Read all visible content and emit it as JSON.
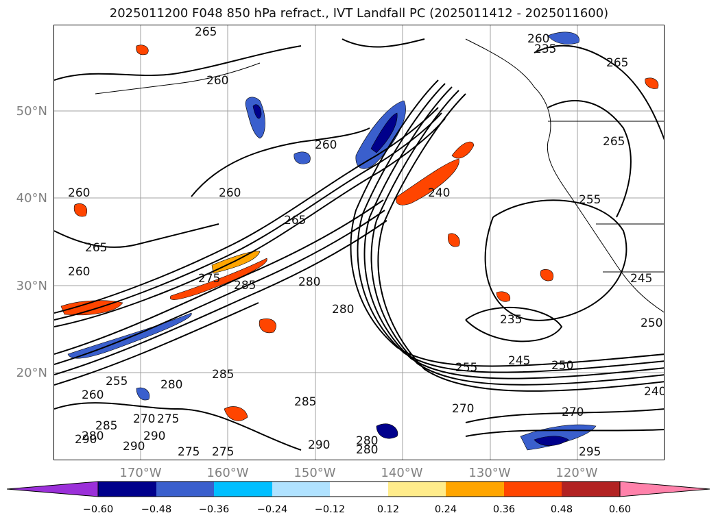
{
  "title": "2025011200 F048 850 hPa refract., IVT Landfall PC (2025011412 - 2025011600)",
  "lat_labels": [
    "50°N",
    "40°N",
    "30°N",
    "20°N"
  ],
  "lon_labels": [
    "170°W",
    "160°W",
    "150°W",
    "140°W",
    "130°W",
    "120°W"
  ],
  "colorbar": {
    "ticks": [
      "−0.60",
      "−0.48",
      "−0.36",
      "−0.24",
      "−0.12",
      "0.12",
      "0.24",
      "0.36",
      "0.48",
      "0.60"
    ],
    "colors": [
      "#9b30d9",
      "#00008b",
      "#3a5fcd",
      "#00bfff",
      "#b0e2ff",
      "#ffffff",
      "#ffec8b",
      "#ffa500",
      "#ff4500",
      "#b22222",
      "#ff82ab"
    ]
  },
  "contour_labels": [
    "265",
    "260",
    "260",
    "260",
    "260",
    "260",
    "265",
    "265",
    "260",
    "275",
    "285",
    "280",
    "280",
    "235",
    "245",
    "255",
    "250",
    "270",
    "270",
    "240",
    "250",
    "245",
    "255",
    "265",
    "280",
    "285",
    "290",
    "275",
    "275",
    "290",
    "290",
    "285",
    "295",
    "280",
    "280",
    "260",
    "255",
    "280",
    "270",
    "275",
    "290",
    "285",
    "240",
    "235",
    "265"
  ]
}
